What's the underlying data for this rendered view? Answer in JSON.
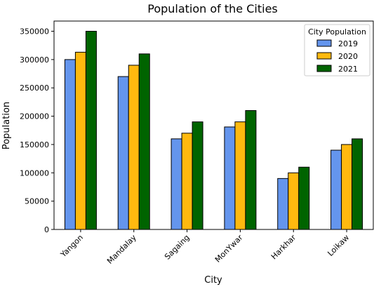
{
  "chart_data": {
    "type": "bar",
    "title": "Population of the Cities",
    "xlabel": "City",
    "ylabel": "Population",
    "categories": [
      "Yangon",
      "Mandalay",
      "Sagaing",
      "MonYwar",
      "Harkhar",
      "Loikaw"
    ],
    "series": [
      {
        "name": "2019",
        "color": "#6495ED",
        "values": [
          300000,
          270000,
          160000,
          181000,
          90000,
          140000
        ]
      },
      {
        "name": "2020",
        "color": "#FFB90F",
        "values": [
          313000,
          290000,
          170000,
          190000,
          100000,
          150000
        ]
      },
      {
        "name": "2021",
        "color": "#006400",
        "values": [
          350000,
          310000,
          190000,
          210000,
          110000,
          160000
        ]
      }
    ],
    "ylim": [
      0,
      368000
    ],
    "yticks": [
      "0",
      "50000",
      "100000",
      "150000",
      "200000",
      "250000",
      "300000",
      "350000"
    ],
    "legend": {
      "title": "City Population",
      "placement": "upper right"
    },
    "grid": false
  }
}
